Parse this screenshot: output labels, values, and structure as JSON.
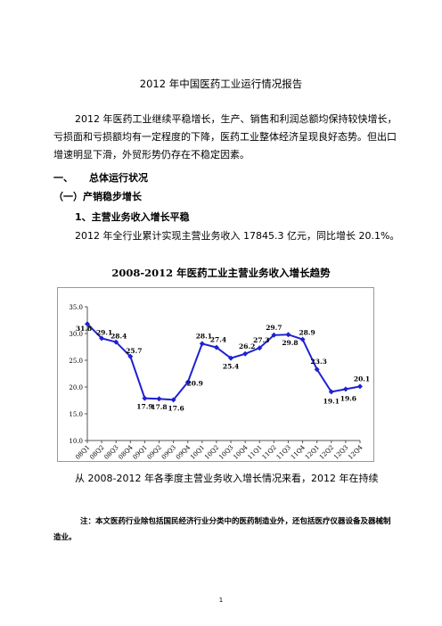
{
  "title": "2012 年中国医药工业运行情况报告",
  "intro": "2012 年医药工业继续平稳增长，生产、销售和利润总额均保持较快增长，亏损面和亏损额均有一定程度的下降，医药工业整体经济呈现良好态势。但出口增速明显下滑，外贸形势仍存在不稳定因素。",
  "section1": {
    "num": "一、",
    "label": "总体运行状况"
  },
  "section1_1": "（一）产销稳步增长",
  "section1_1_1": "1、主营业务收入增长平稳",
  "revenue_text": "2012 年全行业累计实现主营业务收入 17845.3 亿元，同比增长 20.1%。",
  "chart_title": "2008-2012 年医药工业主营业务收入增长趋势",
  "chart_data": {
    "type": "line",
    "title": "2008-2012 年医药工业主营业务收入增长趋势",
    "xlabel": "",
    "ylabel": "",
    "ylim": [
      10.0,
      35.0
    ],
    "yticks": [
      "10.0",
      "15.0",
      "20.0",
      "25.0",
      "30.0",
      "35.0"
    ],
    "categories": [
      "08Q1",
      "08Q2",
      "08Q3",
      "08Q4",
      "09Q1",
      "09Q2",
      "09Q3",
      "09Q4",
      "10Q1",
      "10Q2",
      "10Q3",
      "10Q4",
      "11Q1",
      "11Q2",
      "11Q3",
      "11Q4",
      "12Q1",
      "12Q2",
      "12Q3",
      "12Q4"
    ],
    "values": [
      31.8,
      29.1,
      28.4,
      25.7,
      17.9,
      17.8,
      17.6,
      20.9,
      28.1,
      27.4,
      25.4,
      26.2,
      27.3,
      29.7,
      29.8,
      28.9,
      23.3,
      19.1,
      19.6,
      20.1
    ],
    "labels": [
      "31.8",
      "29.1",
      "28.4",
      "25.7",
      "17.9",
      "17.8",
      "17.6",
      "20.9",
      "28.1",
      "27.4",
      "25.4",
      "26.2",
      "27.3",
      "29.7",
      "29.8",
      "28.9",
      "23.3",
      "19.1",
      "19.6",
      "20.1"
    ],
    "grid": false,
    "line_color": "#1f22d0"
  },
  "trend_text": "从 2008-2012 年各季度主营业务收入增长情况来看，2012 年在持续",
  "note": "注：本文医药行业除包括国民经济行业分类中的医药制造业外，还包括医疗仪器设备及器械制造业。",
  "page_number": "1"
}
